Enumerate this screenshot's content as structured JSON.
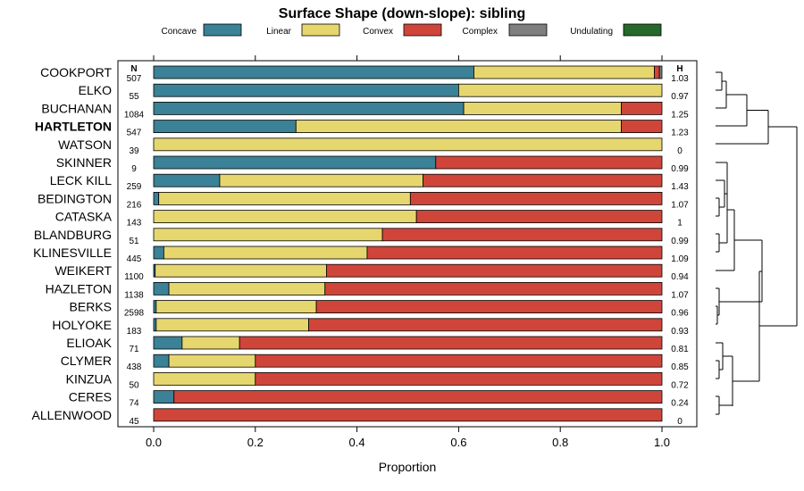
{
  "chart_data": {
    "type": "bar",
    "orientation": "horizontal-stacked",
    "title": "Surface Shape (down-slope): sibling",
    "xlabel": "Proportion",
    "ylabel": "",
    "xlim": [
      0,
      1
    ],
    "xticks": [
      "0.0",
      "0.2",
      "0.4",
      "0.6",
      "0.8",
      "1.0"
    ],
    "n_header": "N",
    "h_header": "H",
    "highlight": "HARTLETON",
    "legend": [
      {
        "name": "Concave",
        "color": "#3b8197"
      },
      {
        "name": "Linear",
        "color": "#e6d66e"
      },
      {
        "name": "Convex",
        "color": "#d0453a"
      },
      {
        "name": "Complex",
        "color": "#7f7f7f"
      },
      {
        "name": "Undulating",
        "color": "#26692b"
      }
    ],
    "rows": [
      {
        "label": "COOKPORT",
        "n": "507",
        "h": "1.03",
        "values": [
          0.63,
          0.355,
          0.01,
          0.005,
          0
        ]
      },
      {
        "label": "ELKO",
        "n": "55",
        "h": "0.97",
        "values": [
          0.6,
          0.4,
          0,
          0,
          0
        ]
      },
      {
        "label": "BUCHANAN",
        "n": "1084",
        "h": "1.25",
        "values": [
          0.61,
          0.31,
          0.08,
          0,
          0
        ]
      },
      {
        "label": "HARTLETON",
        "n": "547",
        "h": "1.23",
        "values": [
          0.28,
          0.64,
          0.08,
          0,
          0
        ]
      },
      {
        "label": "WATSON",
        "n": "39",
        "h": "0",
        "values": [
          0,
          1,
          0,
          0,
          0
        ]
      },
      {
        "label": "SKINNER",
        "n": "9",
        "h": "0.99",
        "values": [
          0.555,
          0,
          0.445,
          0,
          0
        ]
      },
      {
        "label": "LECK KILL",
        "n": "259",
        "h": "1.43",
        "values": [
          0.13,
          0.4,
          0.47,
          0,
          0
        ]
      },
      {
        "label": "BEDINGTON",
        "n": "216",
        "h": "1.07",
        "values": [
          0.01,
          0.495,
          0.495,
          0,
          0
        ]
      },
      {
        "label": "CATASKA",
        "n": "143",
        "h": "1",
        "values": [
          0,
          0.517,
          0.483,
          0,
          0
        ]
      },
      {
        "label": "BLANDBURG",
        "n": "51",
        "h": "0.99",
        "values": [
          0,
          0.45,
          0.55,
          0,
          0
        ]
      },
      {
        "label": "KLINESVILLE",
        "n": "445",
        "h": "1.09",
        "values": [
          0.02,
          0.4,
          0.58,
          0,
          0
        ]
      },
      {
        "label": "WEIKERT",
        "n": "1100",
        "h": "0.94",
        "values": [
          0.003,
          0.337,
          0.66,
          0,
          0
        ]
      },
      {
        "label": "HAZLETON",
        "n": "1138",
        "h": "1.07",
        "values": [
          0.03,
          0.307,
          0.663,
          0,
          0
        ]
      },
      {
        "label": "BERKS",
        "n": "2598",
        "h": "0.96",
        "values": [
          0.005,
          0.315,
          0.68,
          0,
          0
        ]
      },
      {
        "label": "HOLYOKE",
        "n": "183",
        "h": "0.93",
        "values": [
          0.005,
          0.3,
          0.695,
          0,
          0
        ]
      },
      {
        "label": "ELIOAK",
        "n": "71",
        "h": "0.81",
        "values": [
          0.056,
          0.113,
          0.831,
          0,
          0
        ]
      },
      {
        "label": "CLYMER",
        "n": "438",
        "h": "0.85",
        "values": [
          0.03,
          0.17,
          0.8,
          0,
          0
        ]
      },
      {
        "label": "KINZUA",
        "n": "50",
        "h": "0.72",
        "values": [
          0,
          0.2,
          0.8,
          0,
          0
        ]
      },
      {
        "label": "CERES",
        "n": "74",
        "h": "0.24",
        "values": [
          0.04,
          0,
          0.96,
          0,
          0
        ]
      },
      {
        "label": "ALLENWOOD",
        "n": "45",
        "h": "0",
        "values": [
          0,
          0,
          1,
          0,
          0
        ]
      }
    ]
  }
}
